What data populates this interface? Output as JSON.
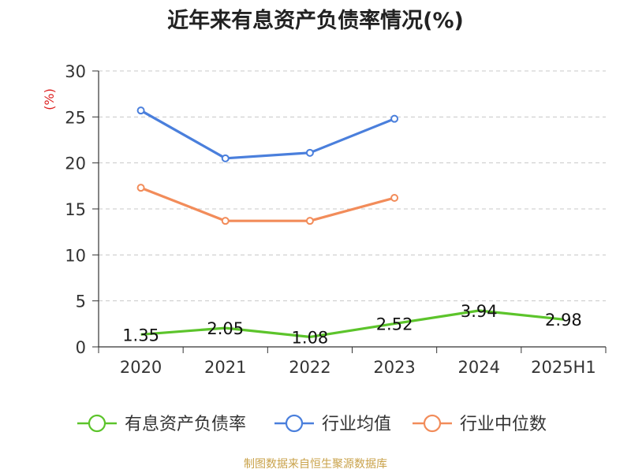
{
  "chart_data": {
    "type": "line",
    "title": "近年来有息资产负债率情况(%)",
    "ylabel": "(%)",
    "xlabel": "",
    "categories": [
      "2020",
      "2021",
      "2022",
      "2023",
      "2024",
      "2025H1"
    ],
    "yticks": [
      "0",
      "5",
      "10",
      "15",
      "20",
      "25",
      "30"
    ],
    "ylim": [
      0,
      30
    ],
    "grid": true,
    "legend_position": "bottom",
    "series": [
      {
        "name": "有息资产负债率",
        "color": "#5cc42b",
        "values": [
          1.35,
          2.05,
          1.08,
          2.52,
          3.94,
          2.98
        ],
        "labels": [
          "1.35",
          "2.05",
          "1.08",
          "2.52",
          "3.94",
          "2.98"
        ]
      },
      {
        "name": "行业均值",
        "color": "#4a7fdc",
        "values": [
          25.7,
          20.5,
          21.1,
          24.8,
          null,
          null
        ]
      },
      {
        "name": "行业中位数",
        "color": "#f28c5a",
        "values": [
          17.3,
          13.7,
          13.7,
          16.2,
          null,
          null
        ]
      }
    ]
  },
  "footer": {
    "source": "制图数据来自恒生聚源数据库"
  }
}
